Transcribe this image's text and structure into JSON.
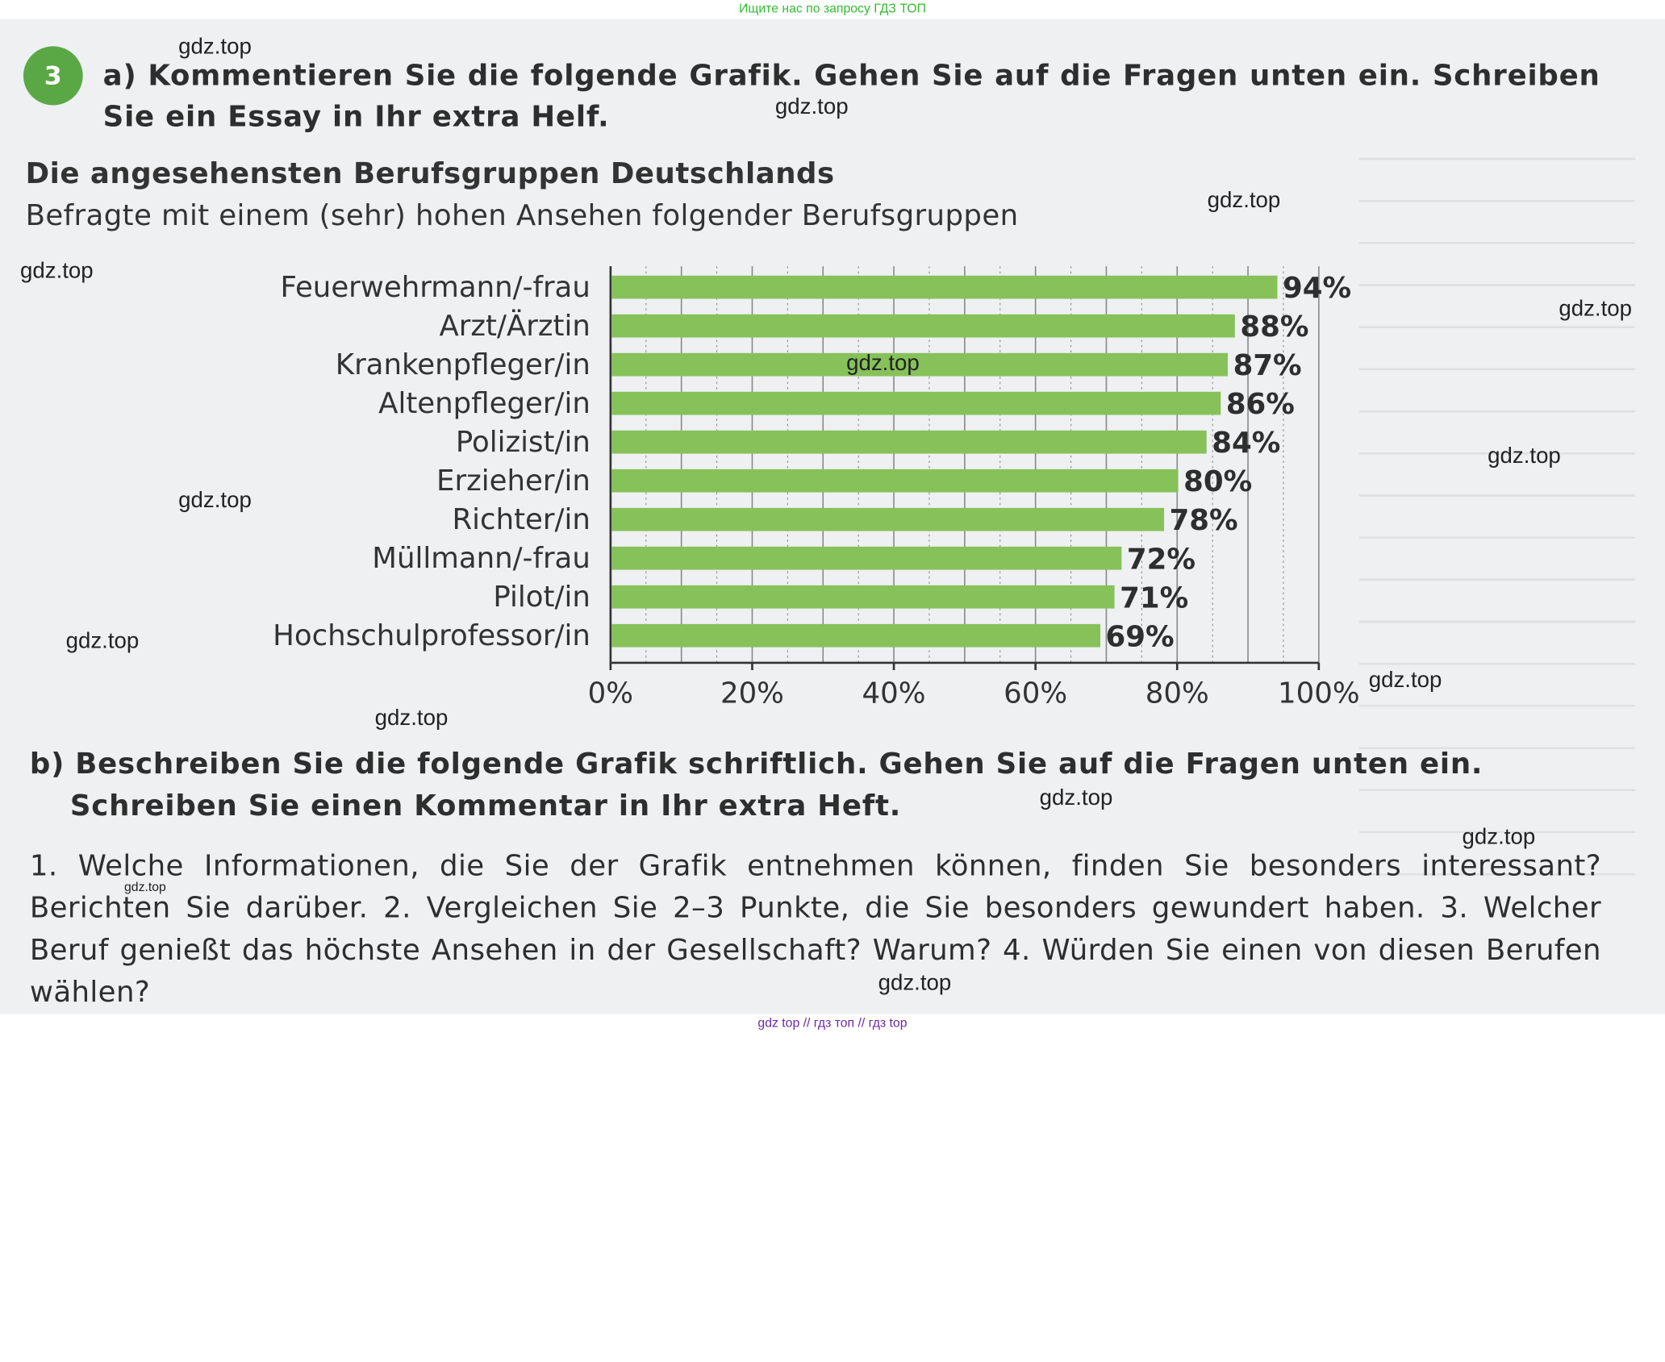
{
  "banner_top": "Ищите нас по запросу ГДЗ ТОП",
  "banner_bottom": "gdz top  //  гдз топ  //  гдз top",
  "exercise": {
    "number": "3",
    "task_a": "a) Kommentieren Sie die folgende Grafik. Gehen Sie auf die Fragen unten ein. Schreiben Sie ein Essay in Ihr extra Helf.",
    "task_b_line1": "b) Beschreiben Sie die folgende Grafik schriftlich. Gehen Sie auf die Fragen unten ein.",
    "task_b_line2": "Schreiben Sie einen Kommentar in Ihr extra Heft.",
    "questions": "1. Welche Informationen, die Sie der Grafik entnehmen können, finden Sie besonders interessant? Berichten Sie darüber. 2. Vergleichen Sie 2–3 Punkte, die Sie besonders gewundert haben. 3. Welcher Beruf genießt das höchste Ansehen in der Gesellschaft? Warum? 4. Würden Sie einen von diesen Berufen wählen?"
  },
  "watermarks": [
    "gdz.top",
    "gdz.top",
    "gdz.top",
    "gdz.top",
    "gdz.top",
    "gdz.top",
    "gdz.top",
    "gdz.top",
    "gdz.top",
    "gdz.top",
    "gdz.top",
    "gdz.top",
    "gdz.top",
    "gdz.top",
    "gdz.top"
  ],
  "chart_data": {
    "type": "bar",
    "orientation": "horizontal",
    "title": "Die angesehensten Berufsgruppen Deutschlands",
    "subtitle": "Befragte mit einem (sehr) hohen Ansehen folgender Berufsgruppen",
    "categories": [
      "Feuerwehrmann/-frau",
      "Arzt/Ärztin",
      "Krankenpfleger/in",
      "Altenpfleger/in",
      "Polizist/in",
      "Erzieher/in",
      "Richter/in",
      "Müllmann/-frau",
      "Pilot/in",
      "Hochschulprofessor/in"
    ],
    "values": [
      94,
      88,
      87,
      86,
      84,
      80,
      78,
      72,
      71,
      69
    ],
    "value_labels": [
      "94%",
      "88%",
      "87%",
      "86%",
      "84%",
      "80%",
      "78%",
      "72%",
      "71%",
      "69%"
    ],
    "xlim": [
      0,
      100
    ],
    "x_ticks": [
      0,
      20,
      40,
      60,
      80,
      100
    ],
    "x_tick_labels": [
      "0%",
      "20%",
      "40%",
      "60%",
      "80%",
      "100%"
    ],
    "grid": true,
    "bar_color": "#86c15a"
  }
}
